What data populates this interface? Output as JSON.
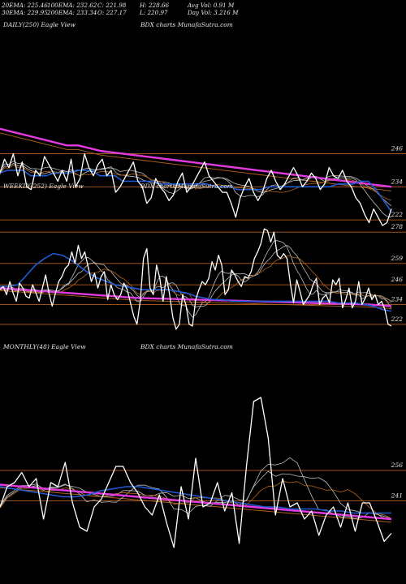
{
  "header": {
    "row1": [
      "20EMA: 225.46",
      "100EMA: 232.62",
      "C: 221.98",
      "H: 228.66",
      "Avg Vol: 0.91 M"
    ],
    "row2": [
      "30EMA: 229.95",
      "200EMA: 233.34",
      "O: 227.17",
      "L: 220.97",
      "Day Vol: 3.216 M"
    ]
  },
  "colors": {
    "price": "#ffffff",
    "ema_short": "#1f5bd6",
    "ema_long": "#e23ae0",
    "ema_brown": "#b5651d",
    "ema_grey": "#bdbdbd",
    "level_line": "#a0521d",
    "background": "#000000"
  },
  "chart_data": [
    {
      "type": "line",
      "title": "DAILY(250) Eagle  View",
      "subtitle": "BDX  charts MunafaSutra.com",
      "ylim": [
        215,
        262
      ],
      "levels": [
        246,
        234,
        222
      ],
      "series": [
        {
          "role": "price",
          "values": [
            239,
            244,
            241,
            246,
            238,
            243,
            234,
            233,
            240,
            238,
            245,
            242,
            239,
            236,
            240,
            236,
            244,
            234,
            237,
            246,
            241,
            238,
            242,
            244,
            238,
            240,
            232,
            234,
            237,
            240,
            243,
            236,
            234,
            228,
            230,
            237,
            234,
            232,
            229,
            231,
            236,
            239,
            232,
            234,
            237,
            240,
            243,
            238,
            236,
            234,
            232,
            232,
            228,
            223,
            230,
            234,
            237,
            232,
            229,
            232,
            237,
            240,
            236,
            233,
            235,
            238,
            241,
            238,
            234,
            236,
            239,
            237,
            233,
            235,
            241,
            238,
            237,
            240,
            236,
            234,
            230,
            228,
            224,
            221,
            226,
            223,
            220,
            221,
            226
          ]
        },
        {
          "role": "ema_short",
          "values": [
            239,
            240,
            240,
            240,
            238,
            238,
            238,
            239,
            239,
            239,
            240,
            240,
            240,
            238,
            238,
            238,
            236,
            236,
            236,
            236,
            236,
            235,
            235,
            235,
            235,
            235,
            235,
            235,
            234,
            234,
            234,
            233,
            233,
            233,
            233,
            234,
            234,
            234,
            234,
            234,
            234,
            234,
            234,
            234,
            235,
            235,
            235,
            236,
            236,
            233,
            229,
            225
          ]
        },
        {
          "role": "ema_long",
          "values": [
            255,
            254,
            253,
            252,
            251,
            250,
            249,
            249,
            248,
            247,
            246.5,
            246,
            245.5,
            245,
            244.5,
            244,
            243.5,
            243,
            242.5,
            242,
            241.5,
            241,
            240.5,
            240,
            239.5,
            239,
            238.5,
            238,
            237.5,
            237,
            236.5,
            236,
            235.5,
            235,
            234.5,
            234
          ]
        }
      ]
    },
    {
      "type": "line",
      "title": "WEEKLY(252) Eagle  View",
      "subtitle": "BDX  charts MunafaSutra.com",
      "ylim": [
        216,
        286
      ],
      "levels": [
        278,
        259,
        246,
        234,
        222
      ],
      "series": [
        {
          "role": "price",
          "values": [
            243,
            245,
            240,
            248,
            241,
            236,
            247,
            244,
            239,
            238,
            246,
            241,
            236,
            244,
            252,
            241,
            233,
            241,
            248,
            251,
            256,
            258,
            266,
            259,
            270,
            262,
            266,
            257,
            248,
            253,
            244,
            251,
            254,
            237,
            246,
            240,
            237,
            240,
            247,
            243,
            235,
            227,
            222,
            236,
            262,
            268,
            244,
            240,
            258,
            250,
            236,
            251,
            240,
            226,
            219,
            222,
            240,
            234,
            222,
            221,
            237,
            243,
            248,
            246,
            250,
            260,
            255,
            264,
            258,
            240,
            243,
            255,
            252,
            248,
            245,
            251,
            250,
            254,
            262,
            266,
            271,
            280,
            279,
            272,
            278,
            264,
            262,
            265,
            262,
            247,
            235,
            249,
            242,
            234,
            237,
            240,
            246,
            250,
            234,
            238,
            240,
            235,
            249,
            246,
            250,
            232,
            237,
            244,
            232,
            236,
            248,
            234,
            238,
            244,
            237,
            240,
            234,
            236,
            231,
            222,
            221
          ]
        },
        {
          "role": "ema_short",
          "values": [
            245,
            245,
            246,
            252,
            258,
            262,
            265,
            264,
            261,
            257,
            253,
            250,
            248,
            246,
            245,
            244,
            243,
            243,
            243,
            243,
            242,
            241,
            239,
            238,
            237,
            237,
            236,
            236,
            236,
            236,
            236,
            236,
            236,
            236,
            236,
            236,
            236,
            236,
            235,
            235,
            235,
            234,
            233,
            231,
            230
          ]
        },
        {
          "role": "ema_long",
          "values": [
            244,
            243.5,
            243,
            242.5,
            242,
            241.5,
            241,
            240.5,
            240,
            239.5,
            239,
            238.5,
            238,
            237.8,
            237.6,
            237.4,
            237.2,
            237,
            236.8,
            236.6,
            236.4,
            236.2,
            236,
            235.8,
            235.6,
            235.4,
            235.2,
            235,
            234.8,
            234.6,
            234.4,
            234.2,
            234,
            233.6,
            233
          ]
        }
      ]
    },
    {
      "type": "line",
      "title": "MONTHLY(48) Eagle  View",
      "subtitle": "BDX  charts MunafaSutra.com",
      "ylim": [
        200,
        300
      ],
      "levels": [
        256,
        241
      ],
      "series": [
        {
          "role": "price",
          "values": [
            238,
            248,
            250,
            255,
            248,
            252,
            232,
            250,
            248,
            260,
            240,
            228,
            226,
            238,
            242,
            250,
            258,
            258,
            250,
            245,
            238,
            234,
            244,
            230,
            218,
            248,
            232,
            262,
            238,
            240,
            250,
            236,
            245,
            220,
            258,
            290,
            292,
            272,
            234,
            252,
            238,
            240,
            232,
            236,
            224,
            234,
            238,
            228,
            240,
            226,
            240,
            240,
            231,
            221,
            225
          ]
        },
        {
          "role": "ema_short",
          "values": [
            248,
            247,
            246,
            245,
            244,
            243,
            243,
            244,
            246,
            247,
            248,
            248,
            247,
            246,
            245,
            244,
            243,
            242,
            241,
            240,
            239,
            238,
            238,
            237,
            237,
            237,
            236,
            236,
            235,
            235,
            235,
            235
          ]
        },
        {
          "role": "ema_long",
          "values": [
            249,
            248.5,
            248,
            247.5,
            247,
            246.5,
            246,
            245.5,
            245,
            244.5,
            244,
            243.5,
            243,
            242.5,
            242,
            241.5,
            241,
            240.5,
            240,
            239.5,
            239,
            238.5,
            238,
            237.5,
            237,
            236.5,
            236,
            235.5,
            235,
            234.5,
            234,
            233.5,
            233,
            232.5,
            232
          ]
        }
      ]
    }
  ]
}
